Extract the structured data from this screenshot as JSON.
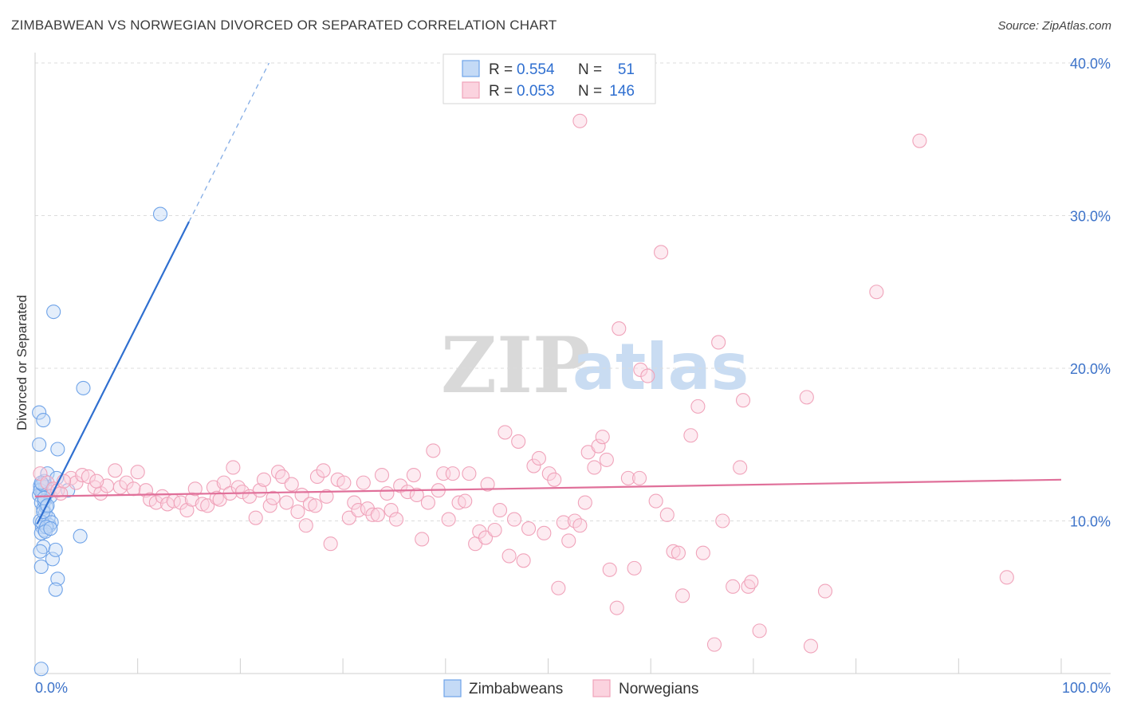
{
  "title": "ZIMBABWEAN VS NORWEGIAN DIVORCED OR SEPARATED CORRELATION CHART",
  "source": "Source: ZipAtlas.com",
  "watermark": {
    "zip": "ZIP",
    "atlas": "atlas"
  },
  "legend": {
    "rows": [
      {
        "r_label": "R =",
        "r_value": "0.554",
        "n_label": "N =",
        "n_value": "51",
        "color": "#6fa3e8"
      },
      {
        "r_label": "R =",
        "r_value": "0.053",
        "n_label": "N =",
        "n_value": "146",
        "color": "#f0a3ba"
      }
    ]
  },
  "bottom_legend": [
    {
      "label": "Zimbabweans",
      "color": "#6fa3e8"
    },
    {
      "label": "Norwegians",
      "color": "#f0a3ba"
    }
  ],
  "chart_data": {
    "type": "scatter",
    "title": "ZIMBABWEAN VS NORWEGIAN DIVORCED OR SEPARATED CORRELATION CHART",
    "xlabel": "",
    "ylabel": "Divorced or Separated",
    "xlim": [
      0,
      100
    ],
    "ylim": [
      0,
      40
    ],
    "x_tick_labels": [
      "0.0%",
      "100.0%"
    ],
    "y_ticks": [
      10,
      20,
      30,
      40
    ],
    "y_tick_labels": [
      "10.0%",
      "20.0%",
      "30.0%",
      "40.0%"
    ],
    "grid": true,
    "legend_position": "top-center",
    "series": [
      {
        "name": "Zimbabweans",
        "color": "#6fa3e8",
        "trend": {
          "x0": 0.2,
          "y0": 9.8,
          "x1": 15.0,
          "y1": 29.6,
          "dash_x1": 22.8,
          "dash_y1": 40.0
        },
        "points": [
          [
            0.6,
            12.1
          ],
          [
            0.7,
            11.8
          ],
          [
            0.5,
            12.3
          ],
          [
            0.8,
            11.9
          ],
          [
            0.9,
            12.6
          ],
          [
            0.4,
            11.7
          ],
          [
            0.6,
            11.2
          ],
          [
            0.8,
            10.8
          ],
          [
            1.0,
            10.5
          ],
          [
            0.5,
            10.0
          ],
          [
            0.7,
            9.6
          ],
          [
            0.9,
            9.4
          ],
          [
            1.2,
            9.8
          ],
          [
            1.4,
            9.7
          ],
          [
            0.6,
            9.2
          ],
          [
            0.8,
            8.3
          ],
          [
            0.5,
            8.0
          ],
          [
            0.6,
            7.0
          ],
          [
            1.7,
            7.5
          ],
          [
            2.0,
            8.1
          ],
          [
            2.2,
            6.2
          ],
          [
            2.0,
            5.5
          ],
          [
            0.4,
            17.1
          ],
          [
            0.8,
            16.6
          ],
          [
            0.4,
            15.0
          ],
          [
            2.2,
            14.7
          ],
          [
            1.2,
            13.1
          ],
          [
            2.1,
            12.8
          ],
          [
            3.2,
            12.0
          ],
          [
            1.0,
            12.2
          ],
          [
            1.3,
            11.9
          ],
          [
            1.5,
            11.6
          ],
          [
            0.9,
            11.3
          ],
          [
            1.1,
            10.9
          ],
          [
            1.3,
            10.2
          ],
          [
            0.7,
            9.9
          ],
          [
            1.6,
            9.9
          ],
          [
            1.1,
            9.6
          ],
          [
            1.0,
            9.3
          ],
          [
            4.4,
            9.0
          ],
          [
            1.8,
            23.7
          ],
          [
            4.7,
            18.7
          ],
          [
            12.2,
            30.1
          ],
          [
            0.6,
            0.3
          ],
          [
            0.5,
            12.0
          ],
          [
            0.7,
            12.4
          ],
          [
            0.8,
            10.6
          ],
          [
            1.5,
            9.5
          ],
          [
            0.9,
            11.5
          ],
          [
            1.2,
            11.0
          ],
          [
            0.6,
            12.5
          ]
        ]
      },
      {
        "name": "Norwegians",
        "color": "#f0a3ba",
        "trend": {
          "x0": 0.0,
          "y0": 11.6,
          "x1": 100.0,
          "y1": 12.7
        },
        "points": [
          [
            0.5,
            13.1
          ],
          [
            1.2,
            12.5
          ],
          [
            1.8,
            12.1
          ],
          [
            2.2,
            12.0
          ],
          [
            2.5,
            11.8
          ],
          [
            3.5,
            12.8
          ],
          [
            4.0,
            12.5
          ],
          [
            4.6,
            13.0
          ],
          [
            5.2,
            12.9
          ],
          [
            5.8,
            12.2
          ],
          [
            6.4,
            11.8
          ],
          [
            7.0,
            12.3
          ],
          [
            7.8,
            13.3
          ],
          [
            8.3,
            12.2
          ],
          [
            8.9,
            12.5
          ],
          [
            9.6,
            12.1
          ],
          [
            10.0,
            13.2
          ],
          [
            10.8,
            12.0
          ],
          [
            11.2,
            11.4
          ],
          [
            11.8,
            11.2
          ],
          [
            12.4,
            11.6
          ],
          [
            12.9,
            11.1
          ],
          [
            13.5,
            11.3
          ],
          [
            14.2,
            11.2
          ],
          [
            14.8,
            10.7
          ],
          [
            15.3,
            11.4
          ],
          [
            15.6,
            12.1
          ],
          [
            16.3,
            11.1
          ],
          [
            16.8,
            11.0
          ],
          [
            17.4,
            12.2
          ],
          [
            17.7,
            11.5
          ],
          [
            18.0,
            11.4
          ],
          [
            18.4,
            12.5
          ],
          [
            19.0,
            11.8
          ],
          [
            19.3,
            13.5
          ],
          [
            19.8,
            12.2
          ],
          [
            20.2,
            11.9
          ],
          [
            20.9,
            11.6
          ],
          [
            21.5,
            10.2
          ],
          [
            21.9,
            12.0
          ],
          [
            22.3,
            12.7
          ],
          [
            22.9,
            11.0
          ],
          [
            23.2,
            11.5
          ],
          [
            23.7,
            13.2
          ],
          [
            24.1,
            12.9
          ],
          [
            24.5,
            11.2
          ],
          [
            25.0,
            12.4
          ],
          [
            25.6,
            10.6
          ],
          [
            26.0,
            11.7
          ],
          [
            26.4,
            9.7
          ],
          [
            26.8,
            11.1
          ],
          [
            27.3,
            11.0
          ],
          [
            27.5,
            12.9
          ],
          [
            28.1,
            13.3
          ],
          [
            28.4,
            11.6
          ],
          [
            28.8,
            8.5
          ],
          [
            29.5,
            12.7
          ],
          [
            30.1,
            12.5
          ],
          [
            30.6,
            10.2
          ],
          [
            31.1,
            11.2
          ],
          [
            31.5,
            10.7
          ],
          [
            32.0,
            12.5
          ],
          [
            32.4,
            10.8
          ],
          [
            32.9,
            10.4
          ],
          [
            33.4,
            10.4
          ],
          [
            33.8,
            13.0
          ],
          [
            34.3,
            11.8
          ],
          [
            34.7,
            10.7
          ],
          [
            35.2,
            10.1
          ],
          [
            35.6,
            12.3
          ],
          [
            36.3,
            11.9
          ],
          [
            36.9,
            13.0
          ],
          [
            37.2,
            11.7
          ],
          [
            37.7,
            8.8
          ],
          [
            38.3,
            11.2
          ],
          [
            38.8,
            14.6
          ],
          [
            39.3,
            12.0
          ],
          [
            39.8,
            13.1
          ],
          [
            40.3,
            10.1
          ],
          [
            40.7,
            13.1
          ],
          [
            41.3,
            11.2
          ],
          [
            41.9,
            11.3
          ],
          [
            42.3,
            13.1
          ],
          [
            42.9,
            8.5
          ],
          [
            43.3,
            9.3
          ],
          [
            43.9,
            8.9
          ],
          [
            44.1,
            12.4
          ],
          [
            44.8,
            9.4
          ],
          [
            45.3,
            10.7
          ],
          [
            45.8,
            15.8
          ],
          [
            46.2,
            7.7
          ],
          [
            46.7,
            10.1
          ],
          [
            47.1,
            15.2
          ],
          [
            47.6,
            7.4
          ],
          [
            48.1,
            9.5
          ],
          [
            48.6,
            13.6
          ],
          [
            49.1,
            14.1
          ],
          [
            49.6,
            9.2
          ],
          [
            50.1,
            13.1
          ],
          [
            50.6,
            12.7
          ],
          [
            51.0,
            5.6
          ],
          [
            51.5,
            9.9
          ],
          [
            52.0,
            8.7
          ],
          [
            52.6,
            10.0
          ],
          [
            53.1,
            9.7
          ],
          [
            53.6,
            11.2
          ],
          [
            53.9,
            14.5
          ],
          [
            54.5,
            13.5
          ],
          [
            54.9,
            14.9
          ],
          [
            55.3,
            15.5
          ],
          [
            55.7,
            14.0
          ],
          [
            56.0,
            6.8
          ],
          [
            56.7,
            4.3
          ],
          [
            56.9,
            22.6
          ],
          [
            57.8,
            12.8
          ],
          [
            58.9,
            12.8
          ],
          [
            58.4,
            6.9
          ],
          [
            59.0,
            19.9
          ],
          [
            59.7,
            19.5
          ],
          [
            60.5,
            11.3
          ],
          [
            61.0,
            27.6
          ],
          [
            61.6,
            10.4
          ],
          [
            62.2,
            8.0
          ],
          [
            62.7,
            7.9
          ],
          [
            63.1,
            5.1
          ],
          [
            63.9,
            15.6
          ],
          [
            64.6,
            17.5
          ],
          [
            65.1,
            7.9
          ],
          [
            66.2,
            1.9
          ],
          [
            66.6,
            21.7
          ],
          [
            67.0,
            10.0
          ],
          [
            68.0,
            5.7
          ],
          [
            68.7,
            13.5
          ],
          [
            69.0,
            17.9
          ],
          [
            69.5,
            5.7
          ],
          [
            69.8,
            6.0
          ],
          [
            70.6,
            2.8
          ],
          [
            75.2,
            18.1
          ],
          [
            75.6,
            1.8
          ],
          [
            77.0,
            5.4
          ],
          [
            82.0,
            25.0
          ],
          [
            86.2,
            34.9
          ],
          [
            94.7,
            6.3
          ],
          [
            53.1,
            36.2
          ],
          [
            2.8,
            12.6
          ],
          [
            6.0,
            12.6
          ]
        ]
      }
    ]
  }
}
